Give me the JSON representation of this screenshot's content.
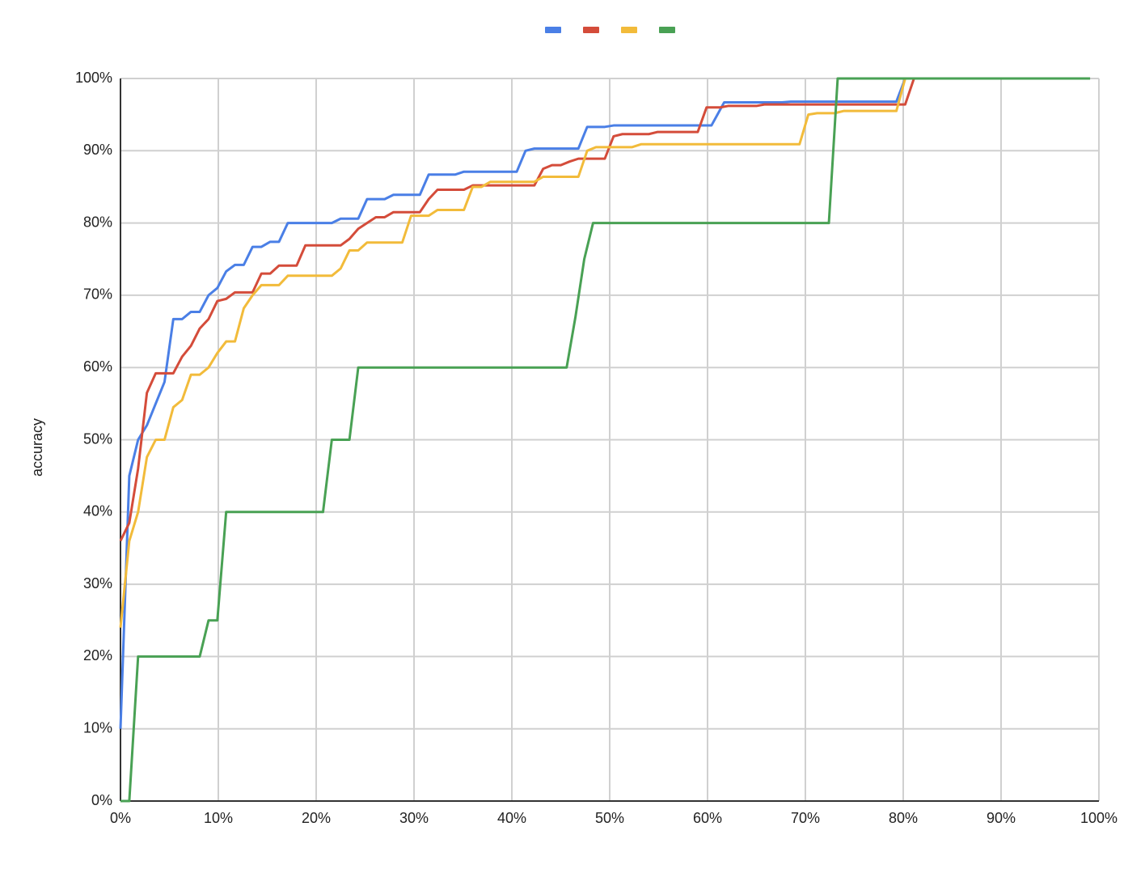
{
  "chart_data": {
    "type": "line",
    "y_label": "accuracy",
    "xlim": [
      0,
      100
    ],
    "ylim": [
      0,
      100
    ],
    "xticks": [
      {
        "value": 0,
        "label": "0%"
      },
      {
        "value": 10,
        "label": "10%"
      },
      {
        "value": 20,
        "label": "20%"
      },
      {
        "value": 30,
        "label": "30%"
      },
      {
        "value": 40,
        "label": "40%"
      },
      {
        "value": 50,
        "label": "50%"
      },
      {
        "value": 60,
        "label": "60%"
      },
      {
        "value": 70,
        "label": "70%"
      },
      {
        "value": 80,
        "label": "80%"
      },
      {
        "value": 90,
        "label": "90%"
      },
      {
        "value": 100,
        "label": "100%"
      }
    ],
    "yticks": [
      {
        "value": 0,
        "label": "0%"
      },
      {
        "value": 10,
        "label": "10%"
      },
      {
        "value": 20,
        "label": "20%"
      },
      {
        "value": 30,
        "label": "30%"
      },
      {
        "value": 40,
        "label": "40%"
      },
      {
        "value": 50,
        "label": "50%"
      },
      {
        "value": 60,
        "label": "60%"
      },
      {
        "value": 70,
        "label": "70%"
      },
      {
        "value": 80,
        "label": "80%"
      },
      {
        "value": 90,
        "label": "90%"
      },
      {
        "value": 100,
        "label": "100%"
      }
    ],
    "grid": true,
    "legend": "top",
    "series": [
      {
        "color": "#4a7fe6",
        "x": [
          0,
          0.9,
          1.8,
          2.7,
          3.6,
          4.5,
          5.4,
          6.3,
          7.2,
          8.1,
          9,
          9.9,
          10.8,
          11.7,
          12.6,
          13.5,
          14.4,
          15.3,
          16.2,
          17.1,
          21.6,
          22.5,
          24.3,
          25.2,
          27,
          27.9,
          30.6,
          31.5,
          34.2,
          35.1,
          40.5,
          41.4,
          42.3,
          46.8,
          47.7,
          49.5,
          50.4,
          60.4,
          61.7,
          67.6,
          68.5,
          79.3,
          80.2,
          81.1
        ],
        "values": [
          10,
          45,
          50,
          52,
          55,
          58,
          66.7,
          66.7,
          67.7,
          67.7,
          70,
          71,
          73.3,
          74.2,
          74.2,
          76.7,
          76.7,
          77.4,
          77.4,
          80,
          80,
          80.6,
          80.6,
          83.3,
          83.3,
          83.9,
          83.9,
          86.7,
          86.7,
          87.1,
          87.1,
          90,
          90.3,
          90.3,
          93.3,
          93.3,
          93.5,
          93.5,
          96.7,
          96.7,
          96.8,
          96.8,
          100,
          100
        ]
      },
      {
        "color": "#d44c3a",
        "x": [
          0,
          0.9,
          1.8,
          2.7,
          3.6,
          5.4,
          6.3,
          7.2,
          8.1,
          9,
          9.9,
          10.8,
          11.7,
          13.5,
          14.4,
          15.3,
          16.2,
          18,
          18.9,
          22.5,
          23.4,
          24.3,
          25.2,
          26.1,
          27,
          27.9,
          30.6,
          31.5,
          32.4,
          35.1,
          36,
          42.3,
          43.2,
          44.1,
          45,
          45.9,
          46.8,
          49.5,
          50.4,
          51.3,
          54,
          54.9,
          59,
          59.9,
          61.3,
          62.1,
          65,
          65.8,
          80.2,
          81.1
        ],
        "values": [
          36,
          38.5,
          46,
          56.5,
          59.2,
          59.2,
          61.5,
          63,
          65.4,
          66.7,
          69.2,
          69.5,
          70.4,
          70.4,
          73,
          73,
          74.1,
          74.1,
          76.9,
          76.9,
          77.8,
          79.2,
          80,
          80.8,
          80.8,
          81.5,
          81.5,
          83.3,
          84.6,
          84.6,
          85.2,
          85.2,
          87.5,
          88,
          88,
          88.5,
          88.9,
          88.9,
          92,
          92.3,
          92.3,
          92.6,
          92.6,
          96,
          96,
          96.2,
          96.2,
          96.4,
          96.4,
          100
        ]
      },
      {
        "color": "#f2bb3a",
        "x": [
          0,
          0.9,
          1.8,
          2.7,
          3.6,
          4.5,
          5.4,
          6.3,
          7.2,
          8.1,
          9,
          9.9,
          10.8,
          11.7,
          12.6,
          13.5,
          14.4,
          16.2,
          17.1,
          21.6,
          22.5,
          23.4,
          24.3,
          25.2,
          28.8,
          29.7,
          31.5,
          32.4,
          35.1,
          36,
          36.9,
          37.8,
          42.3,
          43.2,
          46.8,
          47.7,
          48.6,
          52.3,
          53.2,
          69.4,
          70.3,
          71.2,
          73,
          73.9,
          79.3,
          80.2
        ],
        "values": [
          24,
          36,
          40,
          47.6,
          50,
          50,
          54.5,
          55.5,
          59,
          59,
          60,
          62,
          63.6,
          63.6,
          68.2,
          70,
          71.4,
          71.4,
          72.7,
          72.7,
          73.7,
          76.2,
          76.2,
          77.3,
          77.3,
          81,
          81,
          81.8,
          81.8,
          85,
          85,
          85.7,
          85.7,
          86.4,
          86.4,
          90,
          90.5,
          90.5,
          90.9,
          90.9,
          95,
          95.2,
          95.2,
          95.5,
          95.5,
          100
        ]
      },
      {
        "color": "#49a154",
        "x": [
          0,
          0.9,
          1.8,
          8.1,
          9,
          9.9,
          10.8,
          20.7,
          21.6,
          23.4,
          24.3,
          45.6,
          46.5,
          47.4,
          48.3,
          72.4,
          73.3,
          99.1
        ],
        "values": [
          0,
          0,
          20,
          20,
          25,
          25,
          40,
          40,
          50,
          50,
          60,
          60,
          67,
          75,
          80,
          80,
          100,
          100
        ]
      }
    ]
  }
}
